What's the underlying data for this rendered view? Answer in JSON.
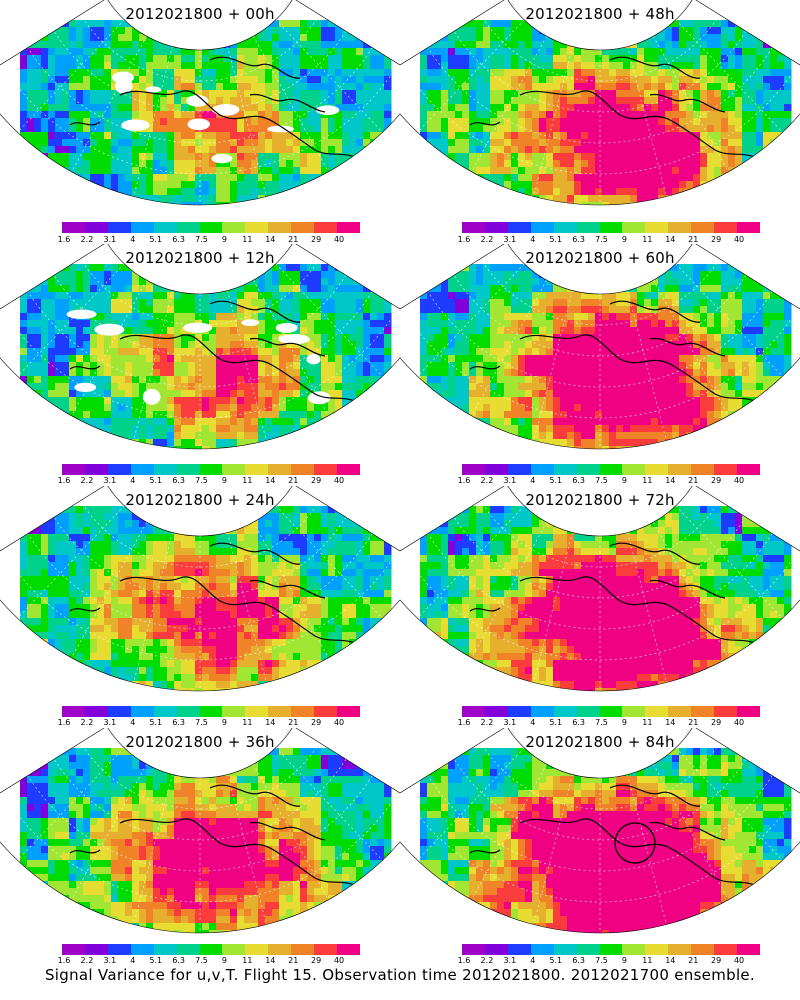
{
  "panels": [
    {
      "title": "2012021800 + 00h",
      "lead": "00h",
      "intensity": 0.0
    },
    {
      "title": "2012021800 + 48h",
      "lead": "48h",
      "intensity": 0.55
    },
    {
      "title": "2012021800 + 12h",
      "lead": "12h",
      "intensity": 0.15
    },
    {
      "title": "2012021800 + 60h",
      "lead": "60h",
      "intensity": 0.68
    },
    {
      "title": "2012021800 + 24h",
      "lead": "24h",
      "intensity": 0.3
    },
    {
      "title": "2012021800 + 72h",
      "lead": "72h",
      "intensity": 0.82
    },
    {
      "title": "2012021800 + 36h",
      "lead": "36h",
      "intensity": 0.45
    },
    {
      "title": "2012021800 + 84h",
      "lead": "84h",
      "intensity": 0.95
    }
  ],
  "colorbar": {
    "labels": [
      "1.6",
      "2.2",
      "3.1",
      "4",
      "5.1",
      "6.3",
      "7.5",
      "9",
      "11",
      "14",
      "21",
      "29",
      "40"
    ],
    "colors": [
      "#a000c8",
      "#8200dc",
      "#1e3cff",
      "#00a0ff",
      "#00c8c8",
      "#00d28c",
      "#00dc00",
      "#a0e632",
      "#e6dc32",
      "#e6af2d",
      "#f08228",
      "#fa3c3c",
      "#f00082"
    ]
  },
  "caption": "Signal Variance for u,v,T. Flight 15. Observation time 2012021800. 2012021700 ensemble."
}
